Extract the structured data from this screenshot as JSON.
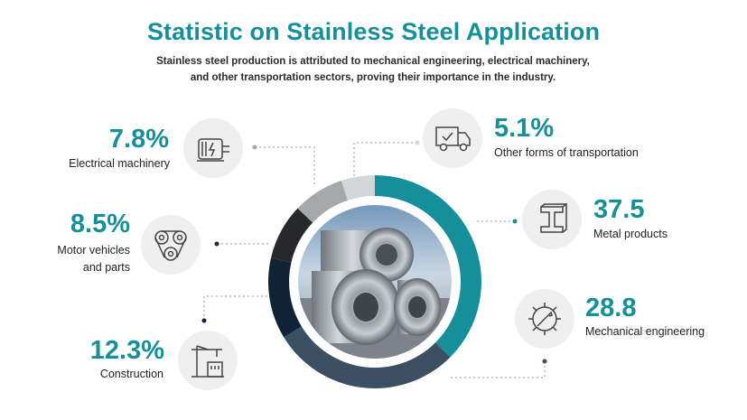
{
  "header": {
    "title": "Statistic on Stainless Steel Application",
    "subtitle": "Stainless steel production is attributed to mechanical engineering, electrical machinery, and other transportation sectors, proving their importance in the industry."
  },
  "colors": {
    "accent": "#15909a",
    "metal_products": "#15909a",
    "mechanical_engineering": "#3b4f63",
    "construction": "#0f2236",
    "motor_vehicles": "#27282b",
    "electrical_machinery": "#a6a8ab",
    "other_transport": "#d4d5d6"
  },
  "chart_data": {
    "type": "pie",
    "title": "Statistic on Stainless Steel Application",
    "series": [
      {
        "name": "Metal products",
        "display": "37.5",
        "value": 37.5,
        "color": "#15909a",
        "icon": "i-beam-icon"
      },
      {
        "name": "Mechanical engineering",
        "display": "28.8",
        "value": 28.8,
        "color": "#3b4f63",
        "icon": "gear-wrench-icon"
      },
      {
        "name": "Construction",
        "display": "12.3%",
        "value": 12.3,
        "color": "#0f2236",
        "icon": "crane-icon"
      },
      {
        "name": "Motor vehicles\nand parts",
        "display": "8.5%",
        "value": 8.5,
        "color": "#27282b",
        "icon": "belt-drive-icon"
      },
      {
        "name": "Electrical machinery",
        "display": "7.8%",
        "value": 7.8,
        "color": "#a6a8ab",
        "icon": "electric-motor-icon"
      },
      {
        "name": "Other forms of transportation",
        "display": "5.1%",
        "value": 5.1,
        "color": "#d4d5d6",
        "icon": "delivery-truck-icon"
      }
    ]
  }
}
